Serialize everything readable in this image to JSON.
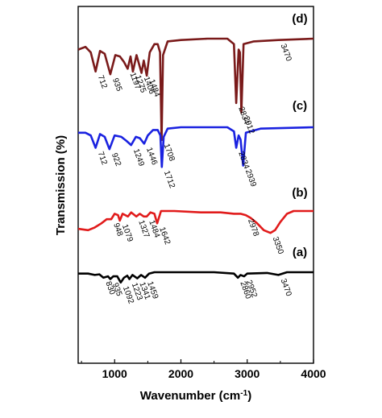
{
  "chart_data": {
    "type": "line",
    "xlabel": "Wavenumber (cm",
    "xlabel_sup": "-1",
    "xlabel_close": ")",
    "ylabel": "Transmission (%)",
    "xlim": [
      450,
      4000
    ],
    "xticks": [
      "1000",
      "2000",
      "3000",
      "4000"
    ],
    "grid": false,
    "legend": "none",
    "series": [
      {
        "label": "(d)",
        "color": "#7a1a1a",
        "baseline": 0.82,
        "points": [
          [
            450,
            0.74
          ],
          [
            560,
            0.76
          ],
          [
            640,
            0.72
          ],
          [
            712,
            0.58
          ],
          [
            780,
            0.73
          ],
          [
            850,
            0.71
          ],
          [
            935,
            0.56
          ],
          [
            1010,
            0.7
          ],
          [
            1080,
            0.69
          ],
          [
            1140,
            0.65
          ],
          [
            1197,
            0.6
          ],
          [
            1240,
            0.69
          ],
          [
            1275,
            0.58
          ],
          [
            1330,
            0.7
          ],
          [
            1406,
            0.57
          ],
          [
            1440,
            0.66
          ],
          [
            1484,
            0.55
          ],
          [
            1530,
            0.72
          ],
          [
            1600,
            0.78
          ],
          [
            1650,
            0.78
          ],
          [
            1685,
            0.72
          ],
          [
            1708,
            0.08
          ],
          [
            1730,
            0.7
          ],
          [
            1800,
            0.8
          ],
          [
            2000,
            0.81
          ],
          [
            2400,
            0.82
          ],
          [
            2700,
            0.82
          ],
          [
            2800,
            0.78
          ],
          [
            2834,
            0.35
          ],
          [
            2870,
            0.74
          ],
          [
            2890,
            0.72
          ],
          [
            2912,
            0.28
          ],
          [
            2945,
            0.78
          ],
          [
            3100,
            0.8
          ],
          [
            3470,
            0.81
          ],
          [
            4000,
            0.82
          ]
        ]
      },
      {
        "label": "(c)",
        "color": "#1a22e0",
        "baseline": 0.62,
        "points": [
          [
            450,
            0.58
          ],
          [
            560,
            0.58
          ],
          [
            640,
            0.56
          ],
          [
            712,
            0.47
          ],
          [
            780,
            0.57
          ],
          [
            850,
            0.55
          ],
          [
            922,
            0.46
          ],
          [
            1000,
            0.56
          ],
          [
            1100,
            0.55
          ],
          [
            1180,
            0.52
          ],
          [
            1249,
            0.49
          ],
          [
            1320,
            0.55
          ],
          [
            1380,
            0.54
          ],
          [
            1446,
            0.5
          ],
          [
            1500,
            0.56
          ],
          [
            1580,
            0.6
          ],
          [
            1650,
            0.6
          ],
          [
            1690,
            0.56
          ],
          [
            1712,
            0.33
          ],
          [
            1740,
            0.55
          ],
          [
            1800,
            0.61
          ],
          [
            2000,
            0.62
          ],
          [
            2400,
            0.62
          ],
          [
            2700,
            0.62
          ],
          [
            2800,
            0.59
          ],
          [
            2834,
            0.47
          ],
          [
            2870,
            0.56
          ],
          [
            2900,
            0.53
          ],
          [
            2939,
            0.34
          ],
          [
            2980,
            0.58
          ],
          [
            3200,
            0.61
          ],
          [
            4000,
            0.62
          ]
        ]
      },
      {
        "label": "(b)",
        "color": "#e11b1b",
        "baseline": 0.34,
        "points": [
          [
            450,
            0.21
          ],
          [
            600,
            0.2
          ],
          [
            700,
            0.22
          ],
          [
            800,
            0.25
          ],
          [
            880,
            0.28
          ],
          [
            948,
            0.28
          ],
          [
            1000,
            0.32
          ],
          [
            1050,
            0.31
          ],
          [
            1079,
            0.27
          ],
          [
            1120,
            0.32
          ],
          [
            1200,
            0.3
          ],
          [
            1250,
            0.33
          ],
          [
            1327,
            0.3
          ],
          [
            1380,
            0.32
          ],
          [
            1440,
            0.3
          ],
          [
            1484,
            0.3
          ],
          [
            1540,
            0.33
          ],
          [
            1600,
            0.32
          ],
          [
            1642,
            0.25
          ],
          [
            1700,
            0.34
          ],
          [
            1900,
            0.34
          ],
          [
            2300,
            0.33
          ],
          [
            2600,
            0.33
          ],
          [
            2800,
            0.32
          ],
          [
            2900,
            0.32
          ],
          [
            2978,
            0.31
          ],
          [
            3050,
            0.29
          ],
          [
            3150,
            0.25
          ],
          [
            3250,
            0.2
          ],
          [
            3350,
            0.18
          ],
          [
            3420,
            0.2
          ],
          [
            3500,
            0.26
          ],
          [
            3600,
            0.32
          ],
          [
            3700,
            0.34
          ],
          [
            4000,
            0.34
          ]
        ]
      },
      {
        "label": "(a)",
        "color": "#000000",
        "baseline": 0.0,
        "points": [
          [
            450,
            -0.01
          ],
          [
            600,
            -0.01
          ],
          [
            700,
            -0.02
          ],
          [
            770,
            -0.015
          ],
          [
            830,
            -0.04
          ],
          [
            900,
            -0.03
          ],
          [
            935,
            -0.05
          ],
          [
            980,
            -0.03
          ],
          [
            1040,
            -0.03
          ],
          [
            1092,
            -0.075
          ],
          [
            1140,
            -0.04
          ],
          [
            1190,
            -0.025
          ],
          [
            1223,
            -0.05
          ],
          [
            1270,
            -0.02
          ],
          [
            1341,
            -0.045
          ],
          [
            1400,
            -0.02
          ],
          [
            1459,
            -0.04
          ],
          [
            1520,
            -0.01
          ],
          [
            1600,
            0.0
          ],
          [
            2000,
            0.0
          ],
          [
            2500,
            0.0
          ],
          [
            2800,
            -0.01
          ],
          [
            2860,
            -0.04
          ],
          [
            2900,
            -0.02
          ],
          [
            2952,
            -0.03
          ],
          [
            3000,
            -0.01
          ],
          [
            3300,
            -0.005
          ],
          [
            3470,
            -0.02
          ],
          [
            3600,
            0.0
          ],
          [
            4000,
            0.0
          ]
        ]
      }
    ],
    "annotations": [
      {
        "series": 0,
        "x": 712,
        "text": "712"
      },
      {
        "series": 0,
        "x": 935,
        "text": "935"
      },
      {
        "series": 0,
        "x": 1197,
        "text": "1197"
      },
      {
        "series": 0,
        "x": 1275,
        "text": "1275"
      },
      {
        "series": 0,
        "x": 1406,
        "text": "1406"
      },
      {
        "series": 0,
        "x": 1484,
        "text": "1484"
      },
      {
        "series": 0,
        "x": 1708,
        "text": "1708"
      },
      {
        "series": 0,
        "x": 2834,
        "text": "2834"
      },
      {
        "series": 0,
        "x": 2912,
        "text": "2912"
      },
      {
        "series": 0,
        "x": 3470,
        "text": "3470"
      },
      {
        "series": 1,
        "x": 712,
        "text": "712"
      },
      {
        "series": 1,
        "x": 922,
        "text": "922"
      },
      {
        "series": 1,
        "x": 1249,
        "text": "1249"
      },
      {
        "series": 1,
        "x": 1446,
        "text": "1446"
      },
      {
        "series": 1,
        "x": 1712,
        "text": "1712"
      },
      {
        "series": 1,
        "x": 2834,
        "text": "2834"
      },
      {
        "series": 1,
        "x": 2939,
        "text": "2939"
      },
      {
        "series": 2,
        "x": 948,
        "text": "948"
      },
      {
        "series": 2,
        "x": 1079,
        "text": "1079"
      },
      {
        "series": 2,
        "x": 1327,
        "text": "1327"
      },
      {
        "series": 2,
        "x": 1484,
        "text": "1484"
      },
      {
        "series": 2,
        "x": 1642,
        "text": "1642"
      },
      {
        "series": 2,
        "x": 2978,
        "text": "2978"
      },
      {
        "series": 2,
        "x": 3350,
        "text": "3350"
      },
      {
        "series": 3,
        "x": 830,
        "text": "830"
      },
      {
        "series": 3,
        "x": 935,
        "text": "935"
      },
      {
        "series": 3,
        "x": 1092,
        "text": "1092"
      },
      {
        "series": 3,
        "x": 1223,
        "text": "1223"
      },
      {
        "series": 3,
        "x": 1341,
        "text": "1341"
      },
      {
        "series": 3,
        "x": 1459,
        "text": "1459"
      },
      {
        "series": 3,
        "x": 2860,
        "text": "2860"
      },
      {
        "series": 3,
        "x": 2952,
        "text": "2952"
      },
      {
        "series": 3,
        "x": 3470,
        "text": "3470"
      }
    ]
  }
}
